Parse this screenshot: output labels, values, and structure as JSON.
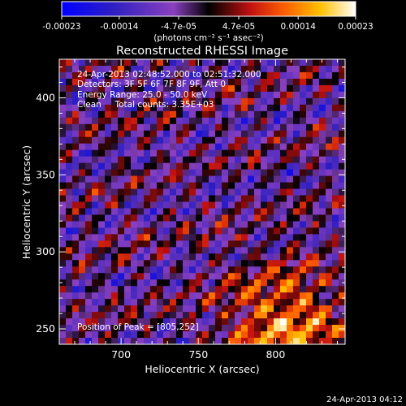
{
  "chart_data": {
    "type": "heatmap",
    "title": "Reconstructed RHESSI Image",
    "xlabel": "Heliocentric X (arcsec)",
    "ylabel": "Heliocentric Y (arcsec)",
    "xlim": [
      660,
      845
    ],
    "ylim": [
      240,
      425
    ],
    "x_ticks": [
      700,
      750,
      800
    ],
    "y_ticks": [
      250,
      300,
      350,
      400
    ],
    "colorbar": {
      "tick_labels": [
        "-0.00023",
        "-0.00014",
        "-4.7e-05",
        "4.7e-05",
        "0.00014",
        "0.00023"
      ],
      "tick_values": [
        -0.00023,
        -0.00014,
        -4.7e-05,
        4.7e-05,
        0.00014,
        0.00023
      ],
      "range": [
        -0.00023,
        0.00023
      ],
      "units_label": "(photons cm⁻² s⁻¹ asec⁻²)"
    },
    "annotations": [
      "24-Apr-2013 02:48:52.000 to 02:51:32.000",
      "Detectors: 3F 5F 6F 7F 8F 9F, Att 0",
      "Energy Range: 25.0 - 50.0 keV",
      "Clean     Total counts: 3.35E+03"
    ],
    "peak_label": "Position of Peak = [805,252]",
    "peak": [
      805,
      252
    ]
  },
  "footer": {
    "timestamp": "24-Apr-2013 04:12"
  },
  "colors": {
    "background": "#000000",
    "axis": "#ffffff",
    "cmap": [
      "#0000ff",
      "#3a1f9e",
      "#8a40c0",
      "#000000",
      "#c01010",
      "#ff6000",
      "#ffc000",
      "#ffffc0",
      "#ffffff"
    ]
  }
}
